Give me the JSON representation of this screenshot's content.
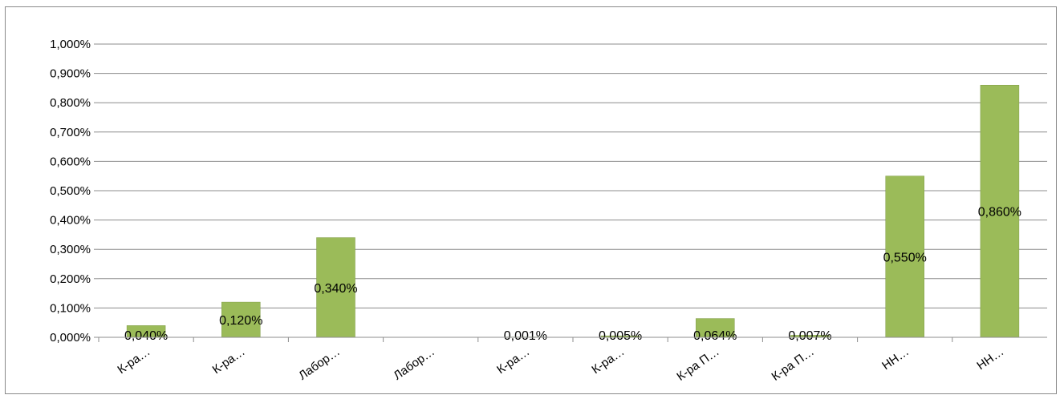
{
  "chart_data": {
    "type": "bar",
    "categories": [
      "К-ра…",
      "К-ра…",
      "Лабор…",
      "Лабор…",
      "К-ра…",
      "К-ра…",
      "К-ра П…",
      "К-ра П…",
      "НН…",
      "НН…"
    ],
    "values": [
      0.04,
      0.12,
      0.34,
      0.0,
      0.001,
      0.005,
      0.064,
      0.007,
      0.55,
      0.86
    ],
    "data_labels": [
      "0,040%",
      "0,120%",
      "0,340%",
      "",
      "0,001%",
      "0,005%",
      "0,064%",
      "0,007%",
      "0,550%",
      "0,860%"
    ],
    "y_ticks": [
      "0,000%",
      "0,100%",
      "0,200%",
      "0,300%",
      "0,400%",
      "0,500%",
      "0,600%",
      "0,700%",
      "0,800%",
      "0,900%",
      "1,000%"
    ],
    "ylim": [
      0,
      1.0
    ],
    "grid": true,
    "legend": "none",
    "bar_color": "#9bbb59",
    "bar_border_color": "#7f9c45",
    "grid_color": "#8c8c8c"
  }
}
